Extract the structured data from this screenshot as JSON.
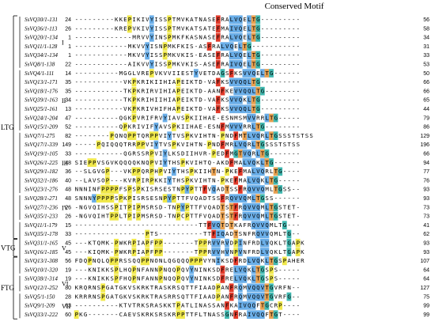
{
  "title": "Conserved Motif",
  "colors": {
    "ink": "#000000",
    "yellow": "#f0e84a",
    "khaki": "#c8c060",
    "blue": "#6aaee8",
    "orange": "#e8a050",
    "red": "#e23a2a",
    "green": "#3fa04a",
    "teal": "#40b8b0"
  },
  "groups": [
    {
      "name": "LTG",
      "first": 0,
      "last": 24
    },
    {
      "name": "VTG",
      "first": 25,
      "last": 26
    },
    {
      "name": "FTG",
      "first": 27,
      "last": 33
    }
  ],
  "subgroups": [
    {
      "name": "I",
      "first": 0,
      "last": 5
    },
    {
      "name": "II",
      "first": 6,
      "last": 12
    },
    {
      "name": "III",
      "first": 13,
      "last": 19
    },
    {
      "name": "IV",
      "first": 20,
      "last": 22
    },
    {
      "name": "V",
      "first": 23,
      "last": 28
    },
    {
      "name": "VI",
      "first": 29,
      "last": 30
    },
    {
      "name": "VII",
      "first": 31,
      "last": 33
    }
  ],
  "rows": [
    {
      "label": "SsVQ30/1-131",
      "start": "24",
      "seq": "---------KKEPIKIVYISSPTMVKATNASEFRALVQELTG---------",
      "end": "56"
    },
    {
      "label": "SsVQ36/1-113",
      "start": "26",
      "seq": "---------KREPVKIVYISSPTMVKATSATEFMAIVQELTG---------",
      "end": "58"
    },
    {
      "label": "SsVQ20/1-134",
      "start": "1",
      "seq": "-------------MRVVYINSPMKFKASNASEFRALVQELTG---------",
      "end": "34"
    },
    {
      "label": "SsVQ11/1-128",
      "start": "1",
      "seq": "------------MKVVYISNPMKFKIS-ASFRALVQELTG-----------",
      "end": "31"
    },
    {
      "label": "SsVQ34/1-134",
      "start": "1",
      "seq": "------------MKVVYISSPMKVKIS-EASEFRALVQELTG---------",
      "end": "33"
    },
    {
      "label": "SsVQ8/1-138",
      "start": "22",
      "seq": "------------AIKVVYISSPMKVKIS-ASEFRAIVQELTG---------",
      "end": "53"
    },
    {
      "label": "SsVQ4/1-111",
      "start": "14",
      "seq": "----------MGGLVREPVKVVIIESTYVETDAGSFKSVVQELTG------",
      "end": "50"
    },
    {
      "label": "SsVQ13/1-171",
      "start": "35",
      "seq": "-----------VKPKRIKIIHIAPEIKTD-VAFKSVVQQLTG---------",
      "end": "66"
    },
    {
      "label": "SsVQ18/1-176",
      "start": "35",
      "seq": "-----------TKPKRIRVIHIAPEIKTD-AANFKEVVQQLTG--------",
      "end": "66"
    },
    {
      "label": "SsVQ39/1-163",
      "start": "34",
      "seq": "-----------TKPKRIHIIHIAPEIKTD-VAFKSVVQKLTG---------",
      "end": "65"
    },
    {
      "label": "SsVQ25/1-161",
      "start": "13",
      "seq": "-----------VKPKRIVHIFHAPEIKTD-VAFKSVVQQLTG---------",
      "end": "44"
    },
    {
      "label": "SsVQ24/1-204",
      "start": "47",
      "seq": "----------QGKPVRIFRVYIAVSPKIIHAE-ESNMSMVVRRLTG-----",
      "end": "79"
    },
    {
      "label": "SsVQ15/1-209",
      "start": "52",
      "seq": "----------QPKRIVIFYAVSPKIIHAE-ESNFMVVVRRLTG--------",
      "end": "86"
    },
    {
      "label": "SsVQ7/1-275",
      "start": "82",
      "seq": "--------PQNQPPTQRPPVIYTVSPKVIHTN-PNDFMTLVQRLTGSSSTSTSS",
      "end": "129"
    },
    {
      "label": "SsVQ17/1-339",
      "start": "149",
      "seq": "-----PQIQQQTRRPPVIYTVSPKVIHTN-PNDFMRLVQRLTGSSSTSTSS",
      "end": "196"
    },
    {
      "label": "SsVQ19/1-105",
      "start": "33",
      "seq": "-----------QGRSSRPVIYLKSDIIHVR-PEDFMGTVQRLTG-------",
      "end": "66"
    },
    {
      "label": "SsVQ26/1-225",
      "start": "48",
      "seq": "SIEPPVSGVKQQQQKNQPVIYTHSPKVIHTQ-AKDFMALVQKLTG------",
      "end": "94"
    },
    {
      "label": "SsVQ29/1-182",
      "start": "36",
      "seq": "--SLGVGP---VKPPQRPHPVIYTHSPKIIHTN-PKEFMALVQRLTG----",
      "end": "77"
    },
    {
      "label": "SsVQ32/1-186",
      "start": "40",
      "seq": "--LAVSOP---KVRPIRPKKIYTHSPKVIHTN-PKEFMALVQKLTG-----",
      "end": "76"
    },
    {
      "label": "SsVQ23/1-276",
      "start": "48",
      "seq": "NNNINFPPPPFSPSPKISRSESTNPYPTTFVQADTSSFRQVVQMLTGSS--",
      "end": "93"
    },
    {
      "label": "SsVQ28/1-271",
      "start": "48",
      "seq": "SNNNYPPPPSPKPISRSESNPYPTTFVQADTSSFRQVVQMLTGSS------",
      "end": "93"
    },
    {
      "label": "SsVQ27/1-236",
      "start": "26",
      "seq": "-NGVQIHSSPITPIPMSRSD-TNPYPTTFVQADTSTFRQVVQMLTGSTET-",
      "end": "73"
    },
    {
      "label": "SsVQ35/1-233",
      "start": "26",
      "seq": "-NGVQIHTPPLTPIPMSRSD-TNPCPTTFVQADTSTFRQVVQMLTGSTET-",
      "end": "73"
    },
    {
      "label": "SsVQ11/1-179",
      "start": "15",
      "seq": "----------------------------TTFVQTDTKAFRQVVQMLTG---",
      "end": "41"
    },
    {
      "label": "SsVQ35/1-178",
      "start": "33",
      "seq": "----------------PTS----------TTFIQADTSNFRQVVQMLTG--",
      "end": "62"
    },
    {
      "label": "SsVQ31/1-165",
      "start": "45",
      "seq": "---KTQMK-PWKRPIAPFPP-------TPPRVVRVDPINFRDLVQKLTGAPK",
      "end": "93"
    },
    {
      "label": "SsVQ16/1-185",
      "start": "45",
      "seq": "---KIQMK-PWKRPIAPFPP-------TPPRVVHVNPVNFRDLVQKLTGAPK",
      "end": "93"
    },
    {
      "label": "SsVQ13/1-308",
      "start": "56",
      "seq": "FDQPNQLQPPRSSQQPPNONLQGQQQPPPVYNIKSDFRDLVQKLTGSPAHER",
      "end": "107"
    },
    {
      "label": "SsVQ10/1-320",
      "start": "19",
      "seq": "---KNIKKSPLHQPNFANNPNQQPQVYNINKSDFRELVQKLTGSPS-----",
      "end": "64"
    },
    {
      "label": "SsVQ38/1-314",
      "start": "19",
      "seq": "---KNIKKSPFHQPNFANNPNQQPQVYNINKSDFRELVQKLTGSPS-----",
      "end": "64"
    },
    {
      "label": "SsVQ12/1-252",
      "start": "80",
      "seq": "KRQRNSPGATGKVSKRKTRASKRSQTTFIAADPANFRQMVQQVTGVRFN--",
      "end": "127"
    },
    {
      "label": "SsVQ5/1-150",
      "start": "28",
      "seq": "KRRRNSPGATGKVSKRKTRASRRSQTTFIAADPANFRQMVQQVTGVRFG--",
      "end": "75"
    },
    {
      "label": "SsVQ9/1-209",
      "start": "63",
      "seq": "----------KTVTRKSRASKKTPATLINASSANFKAIVQQFTGCRP----",
      "end": "99"
    },
    {
      "label": "SsVQ33/1-222",
      "start": "60",
      "seq": "PKG-------CAEVSKRKSRSKRPPTTFLTNASSGNFRAIVQQFTGT----",
      "end": "99"
    }
  ]
}
